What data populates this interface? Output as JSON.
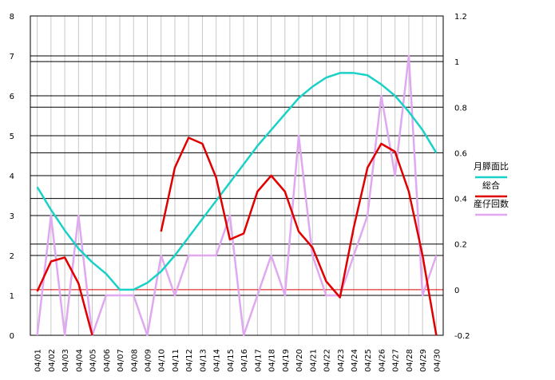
{
  "chart_data": {
    "type": "line",
    "title": "",
    "categories": [
      "04/01",
      "04/02",
      "04/03",
      "04/04",
      "04/05",
      "04/06",
      "04/07",
      "04/08",
      "04/09",
      "04/10",
      "04/11",
      "04/12",
      "04/13",
      "04/14",
      "04/15",
      "04/16",
      "04/17",
      "04/18",
      "04/19",
      "04/20",
      "04/21",
      "04/22",
      "04/23",
      "04/24",
      "04/25",
      "04/26",
      "04/27",
      "04/28",
      "04/29",
      "04/30"
    ],
    "y_left": {
      "min": 0,
      "max": 8,
      "ticks": [
        "0",
        "1",
        "2",
        "3",
        "4",
        "5",
        "6",
        "7",
        "8"
      ]
    },
    "y_right": {
      "min": -0.2,
      "max": 1.2,
      "ticks": [
        "-0.2",
        "0",
        "0.2",
        "0.4",
        "0.6",
        "0.8",
        "1",
        "1.2"
      ]
    },
    "grid": "horizontal",
    "legend_position": "right",
    "series": [
      {
        "name": "月膵面比",
        "color": "#1ad1c8",
        "axis": "right",
        "values": [
          0.45,
          0.35,
          0.26,
          0.18,
          0.12,
          0.07,
          0.0,
          0.0,
          0.03,
          0.08,
          0.15,
          0.23,
          0.31,
          0.39,
          0.47,
          0.55,
          0.63,
          0.7,
          0.77,
          0.84,
          0.89,
          0.93,
          0.95,
          0.95,
          0.94,
          0.9,
          0.85,
          0.78,
          0.7,
          0.6
        ]
      },
      {
        "name": "総合",
        "color": "#e00000",
        "axis": "left",
        "values": [
          1.1,
          1.85,
          1.95,
          1.3,
          0.0,
          null,
          null,
          null,
          null,
          2.6,
          4.2,
          4.95,
          4.8,
          3.95,
          2.4,
          2.55,
          3.6,
          4.0,
          3.6,
          2.6,
          2.2,
          1.35,
          0.95,
          2.7,
          4.2,
          4.8,
          4.6,
          3.6,
          2.0,
          0.0
        ]
      },
      {
        "name": "産仔回数",
        "color": "#e0a8f0",
        "axis": "left",
        "values": [
          0,
          3,
          0,
          3,
          0,
          1,
          1,
          1,
          0,
          2,
          1,
          2,
          2,
          2,
          3,
          0,
          1,
          2,
          1,
          5,
          2,
          1,
          1,
          2,
          3,
          6,
          4,
          7,
          1,
          2
        ]
      }
    ]
  }
}
